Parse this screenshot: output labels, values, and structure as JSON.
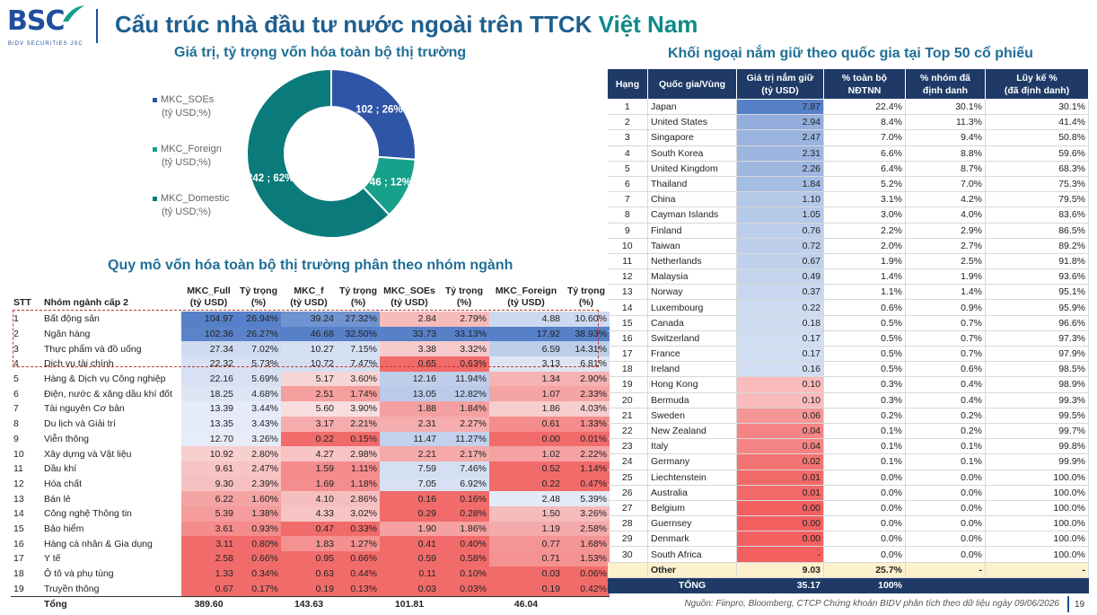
{
  "header": {
    "logo_text": "BSC",
    "logo_sub": "BIDV SECURITIES JSC",
    "title_main": "Cấu trúc nhà đầu tư nước ngoài trên TTCK ",
    "title_highlight": "Việt Nam"
  },
  "colors": {
    "navy": "#1f3a66",
    "teal": "#0e8a8a",
    "blue": "#2f56a6",
    "green": "#17a08a",
    "darkteal": "#0b7a7a",
    "red_scale": "#f26b6b",
    "blue_scale": "#5b86c9"
  },
  "pie_section": {
    "subtitle": "Giá trị, tỷ trọng vốn hóa toàn bộ thị trường",
    "legend": [
      {
        "name": "MKC_SOEs",
        "unit": "(tỷ USD;%)",
        "color": "#2f56a6"
      },
      {
        "name": "MKC_Foreign",
        "unit": "(tỷ USD;%)",
        "color": "#17a08a"
      },
      {
        "name": "MKC_Domestic",
        "unit": "(tỷ USD;%)",
        "color": "#0b7a7a"
      }
    ]
  },
  "chart_data": [
    {
      "type": "pie",
      "donut": true,
      "title": "Giá trị, tỷ trọng vốn hóa toàn bộ thị trường",
      "categories": [
        "MKC_SOEs",
        "MKC_Foreign",
        "MKC_Domestic"
      ],
      "values": [
        102,
        46,
        242
      ],
      "labels": [
        "102 ; 26%",
        "46 ; 12%",
        "242 ; 62%"
      ],
      "colors": [
        "#2f56a6",
        "#17a08a",
        "#0b7a7a"
      ]
    },
    {
      "type": "table",
      "title": "Quy mô vốn hóa toàn bộ thị trường phân theo nhóm ngành",
      "columns": [
        "STT",
        "Nhóm ngành cấp 2",
        "MKC_Full (tỷ USD)",
        "Tỷ trọng (%)",
        "MKC_f (tỷ USD)",
        "Tỷ trọng (%)",
        "MKC_SOEs (tỷ USD)",
        "Tỷ trọng (%)",
        "MKC_Foreign (tỷ USD)",
        "Tỷ trọng (%)"
      ],
      "rows": [
        [
          "1",
          "Bất động sản",
          "104.97",
          "26.94%",
          "39.24",
          "27.32%",
          "2.84",
          "2.79%",
          "4.88",
          "10.60%"
        ],
        [
          "2",
          "Ngân hàng",
          "102.36",
          "26.27%",
          "46.68",
          "32.50%",
          "33.73",
          "33.13%",
          "17.92",
          "38.93%"
        ],
        [
          "3",
          "Thực phẩm và đồ uống",
          "27.34",
          "7.02%",
          "10.27",
          "7.15%",
          "3.38",
          "3.32%",
          "6.59",
          "14.31%"
        ],
        [
          "4",
          "Dịch vụ tài chính",
          "22.32",
          "5.73%",
          "10.72",
          "7.47%",
          "0.65",
          "0.63%",
          "3.13",
          "6.81%"
        ],
        [
          "5",
          "Hàng & Dịch vụ Công nghiệp",
          "22.16",
          "5.69%",
          "5.17",
          "3.60%",
          "12.16",
          "11.94%",
          "1.34",
          "2.90%"
        ],
        [
          "6",
          "Điện, nước & xăng dầu khí đốt",
          "18.25",
          "4.68%",
          "2.51",
          "1.74%",
          "13.05",
          "12.82%",
          "1.07",
          "2.33%"
        ],
        [
          "7",
          "Tài nguyên Cơ bản",
          "13.39",
          "3.44%",
          "5.60",
          "3.90%",
          "1.88",
          "1.84%",
          "1.86",
          "4.03%"
        ],
        [
          "8",
          "Du lịch và Giải trí",
          "13.35",
          "3.43%",
          "3.17",
          "2.21%",
          "2.31",
          "2.27%",
          "0.61",
          "1.33%"
        ],
        [
          "9",
          "Viễn thông",
          "12.70",
          "3.26%",
          "0.22",
          "0.15%",
          "11.47",
          "11.27%",
          "0.00",
          "0.01%"
        ],
        [
          "10",
          "Xây dựng và Vật liệu",
          "10.92",
          "2.80%",
          "4.27",
          "2.98%",
          "2.21",
          "2.17%",
          "1.02",
          "2.22%"
        ],
        [
          "11",
          "Dầu khí",
          "9.61",
          "2.47%",
          "1.59",
          "1.11%",
          "7.59",
          "7.46%",
          "0.52",
          "1.14%"
        ],
        [
          "12",
          "Hóa chất",
          "9.30",
          "2.39%",
          "1.69",
          "1.18%",
          "7.05",
          "6.92%",
          "0.22",
          "0.47%"
        ],
        [
          "13",
          "Bán lẻ",
          "6.22",
          "1.60%",
          "4.10",
          "2.86%",
          "0.16",
          "0.16%",
          "2.48",
          "5.39%"
        ],
        [
          "14",
          "Công nghệ Thông tin",
          "5.39",
          "1.38%",
          "4.33",
          "3.02%",
          "0.29",
          "0.28%",
          "1.50",
          "3.26%"
        ],
        [
          "15",
          "Bảo hiểm",
          "3.61",
          "0.93%",
          "0.47",
          "0.33%",
          "1.90",
          "1.86%",
          "1.19",
          "2.58%"
        ],
        [
          "16",
          "Hàng cá nhân & Gia dụng",
          "3.11",
          "0.80%",
          "1.83",
          "1.27%",
          "0.41",
          "0.40%",
          "0.77",
          "1.68%"
        ],
        [
          "17",
          "Y tế",
          "2.58",
          "0.66%",
          "0.95",
          "0.66%",
          "0.59",
          "0.58%",
          "0.71",
          "1.53%"
        ],
        [
          "18",
          "Ô tô và phụ tùng",
          "1.33",
          "0.34%",
          "0.63",
          "0.44%",
          "0.11",
          "0.10%",
          "0.03",
          "0.06%"
        ],
        [
          "19",
          "Truyền thông",
          "0.67",
          "0.17%",
          "0.19",
          "0.13%",
          "0.03",
          "0.03%",
          "0.19",
          "0.42%"
        ]
      ],
      "total": [
        "Tổng",
        "389.60",
        "143.63",
        "101.81",
        "46.04"
      ]
    },
    {
      "type": "table",
      "title": "Khối ngoại nắm giữ theo quốc gia tại Top 50 cổ phiếu",
      "columns": [
        "Hạng",
        "Quốc gia/Vùng",
        "Giá trị nắm giữ (tỷ USD)",
        "% toàn bộ NĐTNN",
        "% nhóm đã định danh",
        "Lũy kế % (đã định danh)"
      ],
      "rows": [
        [
          "1",
          "Japan",
          "7.87",
          "22.4%",
          "30.1%",
          "30.1%"
        ],
        [
          "2",
          "United States",
          "2.94",
          "8.4%",
          "11.3%",
          "41.4%"
        ],
        [
          "3",
          "Singapore",
          "2.47",
          "7.0%",
          "9.4%",
          "50.8%"
        ],
        [
          "4",
          "South Korea",
          "2.31",
          "6.6%",
          "8.8%",
          "59.6%"
        ],
        [
          "5",
          "United Kingdom",
          "2.26",
          "6.4%",
          "8.7%",
          "68.3%"
        ],
        [
          "6",
          "Thailand",
          "1.84",
          "5.2%",
          "7.0%",
          "75.3%"
        ],
        [
          "7",
          "China",
          "1.10",
          "3.1%",
          "4.2%",
          "79.5%"
        ],
        [
          "8",
          "Cayman Islands",
          "1.05",
          "3.0%",
          "4.0%",
          "83.6%"
        ],
        [
          "9",
          "Finland",
          "0.76",
          "2.2%",
          "2.9%",
          "86.5%"
        ],
        [
          "10",
          "Taiwan",
          "0.72",
          "2.0%",
          "2.7%",
          "89.2%"
        ],
        [
          "11",
          "Netherlands",
          "0.67",
          "1.9%",
          "2.5%",
          "91.8%"
        ],
        [
          "12",
          "Malaysia",
          "0.49",
          "1.4%",
          "1.9%",
          "93.6%"
        ],
        [
          "13",
          "Norway",
          "0.37",
          "1.1%",
          "1.4%",
          "95.1%"
        ],
        [
          "14",
          "Luxembourg",
          "0.22",
          "0.6%",
          "0.9%",
          "95.9%"
        ],
        [
          "15",
          "Canada",
          "0.18",
          "0.5%",
          "0.7%",
          "96.6%"
        ],
        [
          "16",
          "Switzerland",
          "0.17",
          "0.5%",
          "0.7%",
          "97.3%"
        ],
        [
          "17",
          "France",
          "0.17",
          "0.5%",
          "0.7%",
          "97.9%"
        ],
        [
          "18",
          "Ireland",
          "0.16",
          "0.5%",
          "0.6%",
          "98.5%"
        ],
        [
          "19",
          "Hong Kong",
          "0.10",
          "0.3%",
          "0.4%",
          "98.9%"
        ],
        [
          "20",
          "Bermuda",
          "0.10",
          "0.3%",
          "0.4%",
          "99.3%"
        ],
        [
          "21",
          "Sweden",
          "0.06",
          "0.2%",
          "0.2%",
          "99.5%"
        ],
        [
          "22",
          "New Zealand",
          "0.04",
          "0.1%",
          "0.2%",
          "99.7%"
        ],
        [
          "23",
          "Italy",
          "0.04",
          "0.1%",
          "0.1%",
          "99.8%"
        ],
        [
          "24",
          "Germany",
          "0.02",
          "0.1%",
          "0.1%",
          "99.9%"
        ],
        [
          "25",
          "Liechtenstein",
          "0.01",
          "0.0%",
          "0.0%",
          "100.0%"
        ],
        [
          "26",
          "Australia",
          "0.01",
          "0.0%",
          "0.0%",
          "100.0%"
        ],
        [
          "27",
          "Belgium",
          "0.00",
          "0.0%",
          "0.0%",
          "100.0%"
        ],
        [
          "28",
          "Guernsey",
          "0.00",
          "0.0%",
          "0.0%",
          "100.0%"
        ],
        [
          "29",
          "Denmark",
          "0.00",
          "0.0%",
          "0.0%",
          "100.0%"
        ],
        [
          "30",
          "South Africa",
          "-",
          "0.0%",
          "0.0%",
          "100.0%"
        ]
      ],
      "other": [
        "",
        "Other",
        "9.03",
        "25.7%",
        "-",
        "-"
      ],
      "total": [
        "",
        "TỔNG",
        "35.17",
        "100%",
        "",
        ""
      ]
    }
  ],
  "footer": {
    "source": "Nguồn: Fiinpro, Bloomberg, CTCP Chứng khoán BIDV phân tích theo dữ liệu ngày 09/06/2026",
    "page": "19"
  }
}
